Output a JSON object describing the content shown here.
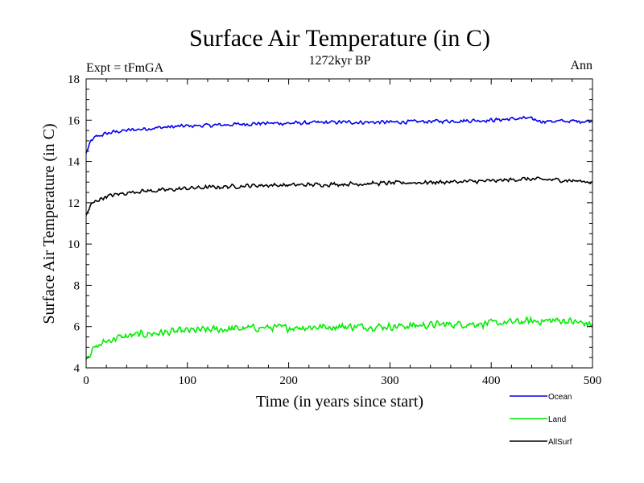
{
  "chart_data": {
    "type": "line",
    "title": "Surface Air Temperature (in C)",
    "subtitle": "1272kyr BP",
    "left_annotation": "Expt = tFmGA",
    "right_annotation": "Ann",
    "xlabel": "Time (in years since start)",
    "ylabel": "Surface Air Temperature (in C)",
    "xlim": [
      0,
      500
    ],
    "ylim": [
      4,
      18
    ],
    "xticks": [
      0,
      100,
      200,
      300,
      400,
      500
    ],
    "yticks": [
      4,
      6,
      8,
      10,
      12,
      14,
      16,
      18
    ],
    "legend_position": "bottom-right outside",
    "series": [
      {
        "name": "Ocean",
        "color": "#0000ee",
        "x": [
          0,
          5,
          10,
          20,
          30,
          50,
          75,
          100,
          125,
          150,
          175,
          200,
          250,
          300,
          350,
          400,
          435,
          450,
          500
        ],
        "values": [
          14.4,
          15.0,
          15.2,
          15.35,
          15.45,
          15.55,
          15.65,
          15.72,
          15.75,
          15.8,
          15.85,
          15.85,
          15.9,
          15.9,
          15.95,
          16.0,
          16.1,
          15.95,
          15.95
        ]
      },
      {
        "name": "Land",
        "color": "#00ee00",
        "x": [
          0,
          5,
          10,
          20,
          30,
          50,
          75,
          100,
          125,
          150,
          175,
          200,
          250,
          300,
          350,
          400,
          435,
          470,
          500
        ],
        "values": [
          4.4,
          4.8,
          5.0,
          5.3,
          5.45,
          5.6,
          5.7,
          5.8,
          5.85,
          5.9,
          5.95,
          5.95,
          6.0,
          6.0,
          6.1,
          6.15,
          6.25,
          6.3,
          6.1
        ]
      },
      {
        "name": "AllSurf",
        "color": "#000000",
        "x": [
          0,
          5,
          10,
          20,
          30,
          50,
          75,
          100,
          125,
          150,
          175,
          200,
          250,
          300,
          350,
          400,
          430,
          470,
          500
        ],
        "values": [
          11.4,
          11.9,
          12.1,
          12.3,
          12.4,
          12.55,
          12.6,
          12.7,
          12.75,
          12.8,
          12.85,
          12.85,
          12.9,
          12.95,
          13.0,
          13.05,
          13.15,
          13.1,
          13.0
        ]
      }
    ]
  }
}
